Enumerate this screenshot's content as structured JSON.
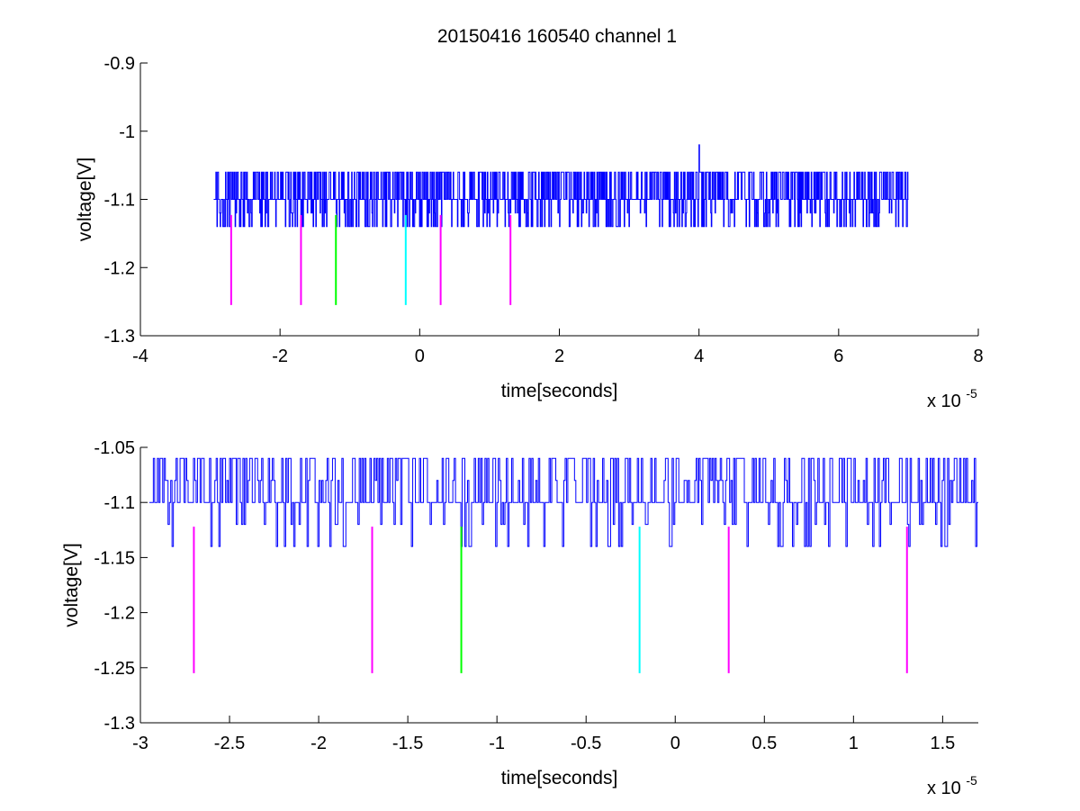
{
  "figure": {
    "title": "20150416 160540 channel 1",
    "background": "#ffffff"
  },
  "chart_data": [
    {
      "type": "line",
      "panel": "top",
      "title": "20150416 160540 channel 1",
      "xlabel": "time[seconds]",
      "ylabel": "voltage[V]",
      "x_multiplier_label": "x 10",
      "x_multiplier_exponent": "-5",
      "x_scale": 1e-05,
      "xlim": [
        -4,
        8
      ],
      "ylim": [
        -1.3,
        -0.9
      ],
      "xticks": [
        -4,
        -2,
        0,
        2,
        4,
        6,
        8
      ],
      "xtick_labels": [
        "-4",
        "-2",
        "0",
        "2",
        "4",
        "6",
        "8"
      ],
      "yticks": [
        -1.3,
        -1.2,
        -1.1,
        -1,
        -0.9
      ],
      "ytick_labels": [
        "-1.3",
        "-1.2",
        "-1.1",
        "-1",
        "-0.9"
      ],
      "grid": false,
      "series": [
        {
          "color": "#0000ff",
          "signal_x_range": [
            -2.95,
            7.0
          ],
          "baseline": -1.1,
          "high_level": -1.06,
          "low_level": -1.14,
          "spike": {
            "x": 4.0,
            "y": -1.02
          }
        }
      ],
      "markers": [
        {
          "x": -2.7,
          "y_top": -1.123,
          "y_bottom": -1.255,
          "color": "#ff00ff"
        },
        {
          "x": -1.7,
          "y_top": -1.123,
          "y_bottom": -1.255,
          "color": "#ff00ff"
        },
        {
          "x": -1.2,
          "y_top": -1.123,
          "y_bottom": -1.255,
          "color": "#00ff00"
        },
        {
          "x": -0.2,
          "y_top": -1.123,
          "y_bottom": -1.255,
          "color": "#00ffff"
        },
        {
          "x": 0.3,
          "y_top": -1.123,
          "y_bottom": -1.255,
          "color": "#ff00ff"
        },
        {
          "x": 1.3,
          "y_top": -1.123,
          "y_bottom": -1.255,
          "color": "#ff00ff"
        }
      ]
    },
    {
      "type": "line",
      "panel": "bottom",
      "xlabel": "time[seconds]",
      "ylabel": "voltage[V]",
      "x_multiplier_label": "x 10",
      "x_multiplier_exponent": "-5",
      "x_scale": 1e-05,
      "xlim": [
        -3.0,
        1.7
      ],
      "ylim": [
        -1.3,
        -1.05
      ],
      "xticks": [
        -3,
        -2.5,
        -2,
        -1.5,
        -1,
        -0.5,
        0,
        0.5,
        1,
        1.5
      ],
      "xtick_labels": [
        "-3",
        "-2.5",
        "-2",
        "-1.5",
        "-1",
        "-0.5",
        "0",
        "0.5",
        "1",
        "1.5"
      ],
      "yticks": [
        -1.3,
        -1.25,
        -1.2,
        -1.15,
        -1.1,
        -1.05
      ],
      "ytick_labels": [
        "-1.3",
        "-1.25",
        "-1.2",
        "-1.15",
        "-1.1",
        "-1.05"
      ],
      "grid": false,
      "series": [
        {
          "color": "#0000ff",
          "signal_x_range": [
            -2.95,
            1.7
          ],
          "baseline": -1.1,
          "high_level": -1.06,
          "mid_level": -1.08,
          "low_level": -1.14
        }
      ],
      "markers": [
        {
          "x": -2.7,
          "y_top": -1.122,
          "y_bottom": -1.255,
          "color": "#ff00ff"
        },
        {
          "x": -1.7,
          "y_top": -1.122,
          "y_bottom": -1.255,
          "color": "#ff00ff"
        },
        {
          "x": -1.2,
          "y_top": -1.122,
          "y_bottom": -1.255,
          "color": "#00ff00"
        },
        {
          "x": -0.2,
          "y_top": -1.122,
          "y_bottom": -1.255,
          "color": "#00ffff"
        },
        {
          "x": 0.3,
          "y_top": -1.122,
          "y_bottom": -1.255,
          "color": "#ff00ff"
        },
        {
          "x": 1.3,
          "y_top": -1.122,
          "y_bottom": -1.255,
          "color": "#ff00ff"
        }
      ]
    }
  ]
}
